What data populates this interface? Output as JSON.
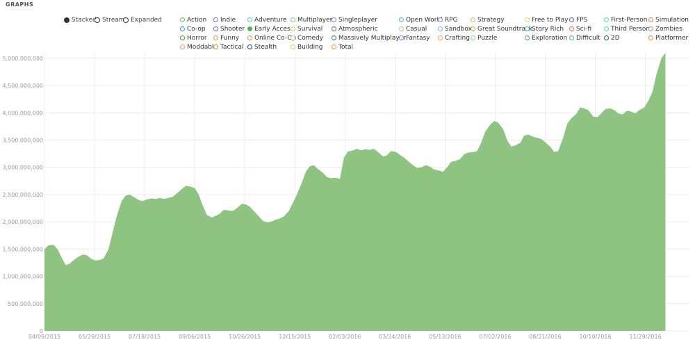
{
  "header": {
    "title": "GRAPHS"
  },
  "modes": [
    {
      "label": "Stacked",
      "selected": true
    },
    {
      "label": "Stream",
      "selected": false
    },
    {
      "label": "Expanded",
      "selected": false
    }
  ],
  "legend": [
    {
      "label": "Action",
      "color": "#67c14d",
      "selected": false
    },
    {
      "label": "Indie",
      "color": "#6a75c8",
      "selected": false
    },
    {
      "label": "Adventure",
      "color": "#62c7b7",
      "selected": false
    },
    {
      "label": "Multiplayer",
      "color": "#7fcf7f",
      "selected": false
    },
    {
      "label": "Singleplayer",
      "color": "#8f7fd0",
      "selected": false
    },
    {
      "label": "Open World",
      "color": "#4fb8d8",
      "selected": false
    },
    {
      "label": "RPG",
      "color": "#7a8ed6",
      "selected": false
    },
    {
      "label": "Strategy",
      "color": "#9fcf6f",
      "selected": false
    },
    {
      "label": "Free to Play",
      "color": "#e8d86a",
      "selected": false
    },
    {
      "label": "FPS",
      "color": "#4a60b8",
      "selected": false
    },
    {
      "label": "First-Person",
      "color": "#5ed4c4",
      "selected": false
    },
    {
      "label": "Simulation",
      "color": "#d08f4a",
      "selected": false
    },
    {
      "label": "Co-op",
      "color": "#3f8fd0",
      "selected": false
    },
    {
      "label": "Shooter",
      "color": "#5a6fc0",
      "selected": false
    },
    {
      "label": "Early Access",
      "color": "#5bb35b",
      "selected": true
    },
    {
      "label": "Survival",
      "color": "#b8d85a",
      "selected": false
    },
    {
      "label": "Atmospheric",
      "color": "#3a8a3a",
      "selected": false
    },
    {
      "label": "Casual",
      "color": "#a8cf6a",
      "selected": false
    },
    {
      "label": "Sandbox",
      "color": "#9aaad8",
      "selected": false
    },
    {
      "label": "Great Soundtrack",
      "color": "#c8a43a",
      "selected": false
    },
    {
      "label": "Story Rich",
      "color": "#4aa8b8",
      "selected": false
    },
    {
      "label": "Sci-fi",
      "color": "#d86a4a",
      "selected": false
    },
    {
      "label": "Third Person",
      "color": "#6fd0a8",
      "selected": false
    },
    {
      "label": "Zombies",
      "color": "#8a9ab8",
      "selected": false
    },
    {
      "label": "Horror",
      "color": "#2f9a4a",
      "selected": false
    },
    {
      "label": "Funny",
      "color": "#e89a4a",
      "selected": false
    },
    {
      "label": "Online Co-Op",
      "color": "#d8984a",
      "selected": false
    },
    {
      "label": "Comedy",
      "color": "#b8d88a",
      "selected": false
    },
    {
      "label": "Massively Multiplayer",
      "color": "#2a7a3a",
      "selected": false
    },
    {
      "label": "Fantasy",
      "color": "#6a8ad0",
      "selected": false
    },
    {
      "label": "Crafting",
      "color": "#e8a85a",
      "selected": false
    },
    {
      "label": "Puzzle",
      "color": "#8fd88f",
      "selected": false
    },
    {
      "label": "Exploration",
      "color": "#3aa86a",
      "selected": false
    },
    {
      "label": "Difficult",
      "color": "#4ab87a",
      "selected": false
    },
    {
      "label": "2D",
      "color": "#1f6a2f",
      "selected": false
    },
    {
      "label": "Platformer",
      "color": "#e8884a",
      "selected": false
    },
    {
      "label": "Moddable",
      "color": "#e89888",
      "selected": false
    },
    {
      "label": "Tactical",
      "color": "#d8883a",
      "selected": false
    },
    {
      "label": "Stealth",
      "color": "#1a3a8a",
      "selected": false
    },
    {
      "label": "Building",
      "color": "#d8c86a",
      "selected": false
    },
    {
      "label": "Total",
      "color": "#e8983a",
      "selected": false
    }
  ],
  "chart_data": {
    "type": "area",
    "title": "",
    "xlabel": "",
    "ylabel": "",
    "grid": true,
    "color": "#8fc381",
    "ylim": [
      0,
      5100000000
    ],
    "x_tick_labels": [
      "04/09/2015",
      "05/29/2015",
      "07/18/2015",
      "09/06/2015",
      "10/26/2015",
      "12/15/2015",
      "02/03/2016",
      "03/24/2016",
      "05/13/2016",
      "07/02/2016",
      "08/21/2016",
      "10/10/2016",
      "11/29/2016"
    ],
    "y_tick_labels": [
      "0",
      "500,000,000",
      "1,000,000,000",
      "1,500,000,000",
      "2,000,000,000",
      "2,500,000,000",
      "3,000,000,000",
      "3,500,000,000",
      "4,000,000,000",
      "4,500,000,000",
      "5,000,000,000"
    ],
    "y_ticks": [
      0,
      500000000,
      1000000000,
      1500000000,
      2000000000,
      2500000000,
      3000000000,
      3500000000,
      4000000000,
      4500000000,
      5000000000
    ],
    "x_range": [
      "04/09/2015",
      "01/12/2017"
    ],
    "series": [
      {
        "points": [
          [
            "04/09/2015",
            1500000000
          ],
          [
            "04/13/2015",
            1570000000
          ],
          [
            "04/18/2015",
            1580000000
          ],
          [
            "04/22/2015",
            1500000000
          ],
          [
            "04/26/2015",
            1350000000
          ],
          [
            "04/30/2015",
            1210000000
          ],
          [
            "05/04/2015",
            1230000000
          ],
          [
            "05/09/2015",
            1310000000
          ],
          [
            "05/13/2015",
            1360000000
          ],
          [
            "05/17/2015",
            1400000000
          ],
          [
            "05/21/2015",
            1390000000
          ],
          [
            "05/26/2015",
            1320000000
          ],
          [
            "05/30/2015",
            1290000000
          ],
          [
            "06/03/2015",
            1300000000
          ],
          [
            "06/07/2015",
            1330000000
          ],
          [
            "06/12/2015",
            1500000000
          ],
          [
            "06/16/2015",
            1800000000
          ],
          [
            "06/20/2015",
            2100000000
          ],
          [
            "06/25/2015",
            2380000000
          ],
          [
            "06/29/2015",
            2480000000
          ],
          [
            "07/03/2015",
            2500000000
          ],
          [
            "07/07/2015",
            2460000000
          ],
          [
            "07/12/2015",
            2400000000
          ],
          [
            "07/16/2015",
            2380000000
          ],
          [
            "07/20/2015",
            2410000000
          ],
          [
            "07/25/2015",
            2430000000
          ],
          [
            "07/29/2015",
            2420000000
          ],
          [
            "08/02/2015",
            2440000000
          ],
          [
            "08/06/2015",
            2420000000
          ],
          [
            "08/11/2015",
            2440000000
          ],
          [
            "08/15/2015",
            2460000000
          ],
          [
            "08/19/2015",
            2520000000
          ],
          [
            "08/24/2015",
            2600000000
          ],
          [
            "08/28/2015",
            2660000000
          ],
          [
            "09/01/2015",
            2650000000
          ],
          [
            "09/06/2015",
            2620000000
          ],
          [
            "09/10/2015",
            2500000000
          ],
          [
            "09/14/2015",
            2300000000
          ],
          [
            "09/18/2015",
            2130000000
          ],
          [
            "09/23/2015",
            2080000000
          ],
          [
            "09/27/2015",
            2110000000
          ],
          [
            "10/01/2015",
            2150000000
          ],
          [
            "10/05/2015",
            2220000000
          ],
          [
            "10/10/2015",
            2210000000
          ],
          [
            "10/14/2015",
            2200000000
          ],
          [
            "10/18/2015",
            2250000000
          ],
          [
            "10/23/2015",
            2330000000
          ],
          [
            "10/27/2015",
            2320000000
          ],
          [
            "10/31/2015",
            2280000000
          ],
          [
            "11/04/2015",
            2200000000
          ],
          [
            "11/09/2015",
            2100000000
          ],
          [
            "11/13/2015",
            2020000000
          ],
          [
            "11/17/2015",
            1990000000
          ],
          [
            "11/21/2015",
            2000000000
          ],
          [
            "11/26/2015",
            2040000000
          ],
          [
            "11/30/2015",
            2060000000
          ],
          [
            "12/04/2015",
            2100000000
          ],
          [
            "12/09/2015",
            2200000000
          ],
          [
            "12/13/2015",
            2350000000
          ],
          [
            "12/17/2015",
            2500000000
          ],
          [
            "12/22/2015",
            2720000000
          ],
          [
            "12/26/2015",
            2920000000
          ],
          [
            "12/30/2015",
            3020000000
          ],
          [
            "01/03/2016",
            3040000000
          ],
          [
            "01/07/2016",
            2970000000
          ],
          [
            "01/12/2016",
            2900000000
          ],
          [
            "01/16/2016",
            2820000000
          ],
          [
            "01/20/2016",
            2800000000
          ],
          [
            "01/24/2016",
            2810000000
          ],
          [
            "01/29/2016",
            2790000000
          ],
          [
            "02/02/2016",
            3180000000
          ],
          [
            "02/06/2016",
            3290000000
          ],
          [
            "02/11/2016",
            3310000000
          ],
          [
            "02/15/2016",
            3340000000
          ],
          [
            "02/19/2016",
            3310000000
          ],
          [
            "02/23/2016",
            3330000000
          ],
          [
            "02/28/2016",
            3320000000
          ],
          [
            "03/03/2016",
            3340000000
          ],
          [
            "03/07/2016",
            3280000000
          ],
          [
            "03/12/2016",
            3200000000
          ],
          [
            "03/16/2016",
            3220000000
          ],
          [
            "03/20/2016",
            3300000000
          ],
          [
            "03/25/2016",
            3280000000
          ],
          [
            "03/29/2016",
            3230000000
          ],
          [
            "04/02/2016",
            3180000000
          ],
          [
            "04/07/2016",
            3100000000
          ],
          [
            "04/11/2016",
            3040000000
          ],
          [
            "04/15/2016",
            2990000000
          ],
          [
            "04/19/2016",
            3000000000
          ],
          [
            "04/24/2016",
            3040000000
          ],
          [
            "04/28/2016",
            3010000000
          ],
          [
            "05/02/2016",
            2960000000
          ],
          [
            "05/07/2016",
            2940000000
          ],
          [
            "05/11/2016",
            2920000000
          ],
          [
            "05/15/2016",
            3000000000
          ],
          [
            "05/19/2016",
            3100000000
          ],
          [
            "05/24/2016",
            3120000000
          ],
          [
            "05/28/2016",
            3150000000
          ],
          [
            "06/01/2016",
            3240000000
          ],
          [
            "06/05/2016",
            3270000000
          ],
          [
            "06/10/2016",
            3280000000
          ],
          [
            "06/14/2016",
            3300000000
          ],
          [
            "06/18/2016",
            3450000000
          ],
          [
            "06/22/2016",
            3650000000
          ],
          [
            "06/27/2016",
            3780000000
          ],
          [
            "07/01/2016",
            3850000000
          ],
          [
            "07/05/2016",
            3820000000
          ],
          [
            "07/10/2016",
            3700000000
          ],
          [
            "07/14/2016",
            3500000000
          ],
          [
            "07/18/2016",
            3380000000
          ],
          [
            "07/22/2016",
            3400000000
          ],
          [
            "07/27/2016",
            3450000000
          ],
          [
            "07/31/2016",
            3580000000
          ],
          [
            "08/04/2016",
            3600000000
          ],
          [
            "08/09/2016",
            3560000000
          ],
          [
            "08/13/2016",
            3540000000
          ],
          [
            "08/17/2016",
            3520000000
          ],
          [
            "08/21/2016",
            3460000000
          ],
          [
            "08/26/2016",
            3380000000
          ],
          [
            "08/30/2016",
            3280000000
          ],
          [
            "09/03/2016",
            3300000000
          ],
          [
            "09/08/2016",
            3550000000
          ],
          [
            "09/12/2016",
            3800000000
          ],
          [
            "09/16/2016",
            3900000000
          ],
          [
            "09/21/2016",
            3980000000
          ],
          [
            "09/25/2016",
            4100000000
          ],
          [
            "09/29/2016",
            4080000000
          ],
          [
            "10/03/2016",
            4050000000
          ],
          [
            "10/08/2016",
            3930000000
          ],
          [
            "10/12/2016",
            3920000000
          ],
          [
            "10/16/2016",
            3990000000
          ],
          [
            "10/20/2016",
            4070000000
          ],
          [
            "10/25/2016",
            4080000000
          ],
          [
            "10/29/2016",
            4050000000
          ],
          [
            "11/02/2016",
            3990000000
          ],
          [
            "11/06/2016",
            3970000000
          ],
          [
            "11/11/2016",
            4040000000
          ],
          [
            "11/15/2016",
            4020000000
          ],
          [
            "11/19/2016",
            3990000000
          ],
          [
            "11/23/2016",
            4050000000
          ],
          [
            "11/28/2016",
            4100000000
          ],
          [
            "12/02/2016",
            4220000000
          ],
          [
            "12/06/2016",
            4380000000
          ],
          [
            "12/10/2016",
            4700000000
          ],
          [
            "12/15/2016",
            5000000000
          ],
          [
            "12/19/2016",
            5150000000
          ]
        ]
      }
    ]
  }
}
